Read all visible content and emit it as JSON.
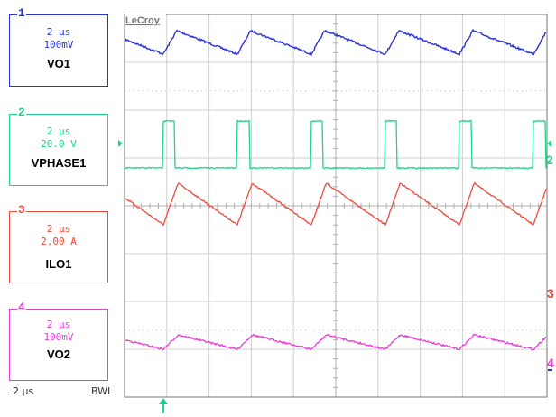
{
  "brand": "LeCroy",
  "channels": [
    {
      "num": "1",
      "time": "2 µs",
      "scale": "100mV",
      "label": "VO1",
      "color": "#2a33d8"
    },
    {
      "num": "2",
      "time": "2 µs",
      "scale": "20.0 V",
      "label": "VPHASE1",
      "color": "#22d28a"
    },
    {
      "num": "3",
      "time": "2 µs",
      "scale": "2.00 A",
      "label": "ILO1",
      "color": "#ee4a3c"
    },
    {
      "num": "4",
      "time": "2 µs",
      "scale": "100mV",
      "label": "VO2",
      "color": "#e83cd8"
    }
  ],
  "footer": {
    "timebase": "2 µs",
    "bwl": "BWL"
  },
  "markers": {
    "ch2": "2",
    "ch3": "3",
    "ch4": "4"
  },
  "chart_data": {
    "type": "line",
    "grid": "10 x 8 divisions",
    "period_divisions": 2.1,
    "series": [
      {
        "name": "VO1",
        "shape": "sawtooth ripple"
      },
      {
        "name": "VPHASE1",
        "shape": "pulse train"
      },
      {
        "name": "ILO1",
        "shape": "sawtooth current"
      },
      {
        "name": "VO2",
        "shape": "sawtooth ripple"
      }
    ]
  }
}
